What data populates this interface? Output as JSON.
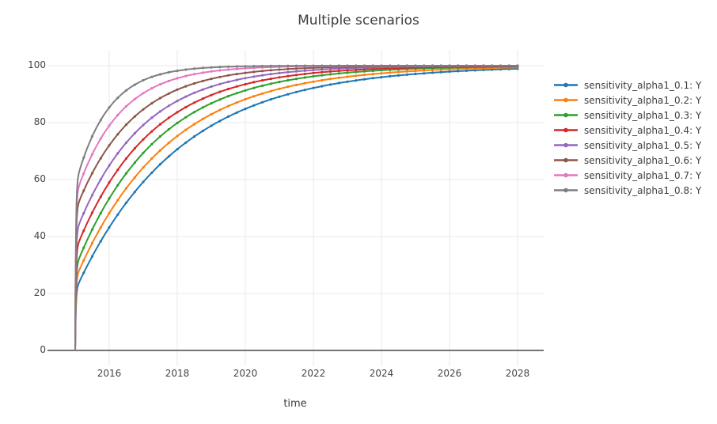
{
  "figure": {
    "background": "#ffffff",
    "grid_color": "#e9e9e9",
    "axis_line_color": "#474747",
    "text_color": "#3d3d3d"
  },
  "chart_data": {
    "type": "line",
    "title": "Multiple scenarios",
    "xlabel": "time",
    "ylabel": "",
    "grid": true,
    "legend_position": "right",
    "x_ticks": [
      2016,
      2018,
      2020,
      2022,
      2024,
      2026,
      2028
    ],
    "y_ticks": [
      0,
      20,
      40,
      60,
      80,
      100
    ],
    "x_range": [
      2014.2,
      2028.8
    ],
    "y_range": [
      -5.5,
      105.5
    ],
    "start_year": 2015,
    "end_year": 2028,
    "years": [
      2015,
      2016,
      2017,
      2018,
      2019,
      2020,
      2021,
      2022,
      2023,
      2024,
      2025,
      2026,
      2027,
      2028
    ],
    "series": [
      {
        "name": "sensitivity_alpha1_0.1: Y",
        "color": "#1f77b4",
        "jump": 21,
        "rate": 0.33,
        "yearly_values": [
          0,
          43.2,
          59.2,
          70.6,
          78.9,
          84.8,
          89.1,
          92.2,
          94.4,
          95.9,
          97.1,
          97.9,
          98.5,
          98.9
        ]
      },
      {
        "name": "sensitivity_alpha1_0.2: Y",
        "color": "#ff7f0e",
        "jump": 25,
        "rate": 0.37,
        "yearly_values": [
          0,
          48.2,
          64.2,
          75.3,
          82.9,
          88.2,
          91.9,
          94.4,
          96.1,
          97.3,
          98.1,
          98.7,
          99.1,
          99.4
        ]
      },
      {
        "name": "sensitivity_alpha1_0.3: Y",
        "color": "#2ca02c",
        "jump": 29,
        "rate": 0.42,
        "yearly_values": [
          0,
          53.4,
          69.3,
          79.9,
          86.8,
          91.3,
          94.3,
          96.2,
          97.5,
          98.4,
          98.9,
          99.3,
          99.5,
          99.7
        ]
      },
      {
        "name": "sensitivity_alpha1_0.4: Y",
        "color": "#d62728",
        "jump": 35,
        "rate": 0.46,
        "yearly_values": [
          0,
          59.0,
          74.1,
          83.6,
          89.7,
          93.5,
          95.9,
          97.4,
          98.4,
          99.0,
          99.3,
          99.6,
          99.7,
          99.8
        ]
      },
      {
        "name": "sensitivity_alpha1_0.5: Y",
        "color": "#9467bd",
        "jump": 41,
        "rate": 0.52,
        "yearly_values": [
          0,
          64.9,
          79.1,
          87.6,
          92.6,
          95.6,
          97.4,
          98.4,
          99.1,
          99.4,
          99.7,
          99.8,
          99.9,
          99.9
        ]
      },
      {
        "name": "sensitivity_alpha1_0.6: Y",
        "color": "#8c564b",
        "jump": 49,
        "rate": 0.6,
        "yearly_values": [
          0,
          72.0,
          84.6,
          91.6,
          95.4,
          97.5,
          98.6,
          99.2,
          99.6,
          99.8,
          99.9,
          99.9,
          100.0,
          100.0
        ]
      },
      {
        "name": "sensitivity_alpha1_0.7: Y",
        "color": "#e377c2",
        "jump": 54,
        "rate": 0.78,
        "yearly_values": [
          0,
          78.9,
          90.3,
          95.6,
          98.0,
          99.1,
          99.6,
          99.8,
          99.9,
          100.0,
          100.0,
          100.0,
          100.0,
          100.0
        ]
      },
      {
        "name": "sensitivity_alpha1_0.8: Y",
        "color": "#7f7f7f",
        "jump": 58,
        "rate": 1.05,
        "yearly_values": [
          0,
          85.3,
          94.9,
          98.2,
          99.4,
          99.8,
          99.9,
          100.0,
          100.0,
          100.0,
          100.0,
          100.0,
          100.0,
          100.0
        ]
      }
    ]
  }
}
